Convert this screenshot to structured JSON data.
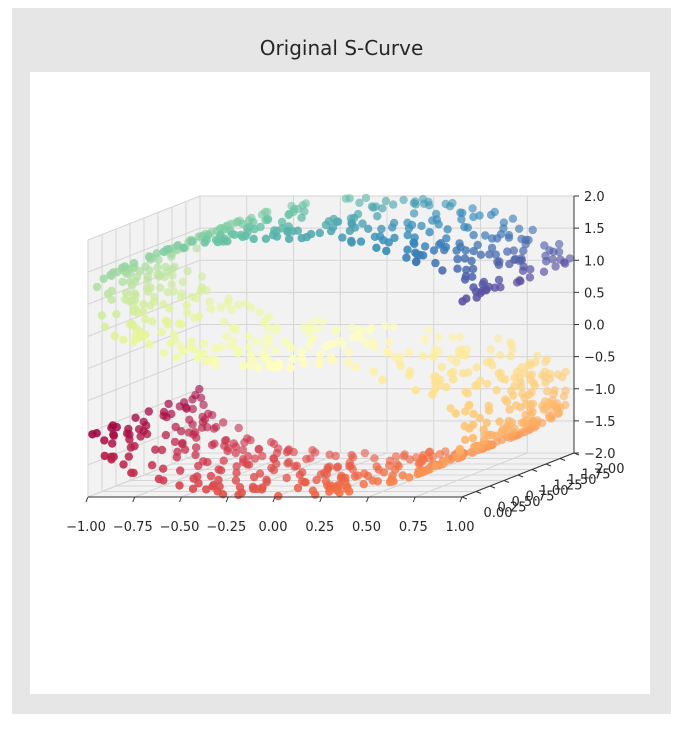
{
  "chart_data": {
    "type": "scatter",
    "projection": "3d",
    "title": "Original S-Curve",
    "xlabel": "",
    "ylabel": "",
    "zlabel": "",
    "x_ticks": [
      "−1.00",
      "−0.75",
      "−0.50",
      "−0.25",
      "0.00",
      "0.25",
      "0.50",
      "0.75",
      "1.00"
    ],
    "y_ticks": [
      "0.00",
      "0.25",
      "0.50",
      "0.75",
      "1.00",
      "1.25",
      "1.50",
      "1.75",
      "2.00"
    ],
    "z_ticks": [
      "2.0",
      "1.5",
      "1.0",
      "0.5",
      "0.0",
      "−0.5",
      "−1.0",
      "−1.5",
      "−2.0"
    ],
    "xlim": [
      -1.0,
      1.0
    ],
    "ylim": [
      0.0,
      2.0
    ],
    "zlim": [
      -2.0,
      2.0
    ],
    "grid": true,
    "colormap": "Spectral",
    "color_by": "position along curve",
    "n_points": 1000,
    "curve": {
      "x": "sin(t)",
      "z": "sign(t) * (cos(t) - 1)",
      "t_range": [
        -4.712,
        4.712
      ],
      "y_range": [
        0.0,
        2.0
      ]
    },
    "colors": {
      "figure_background": "#e6e6e6",
      "axes_background": "#ffffff",
      "pane": "#f2f2f2",
      "grid": "#d5d5d5"
    }
  }
}
